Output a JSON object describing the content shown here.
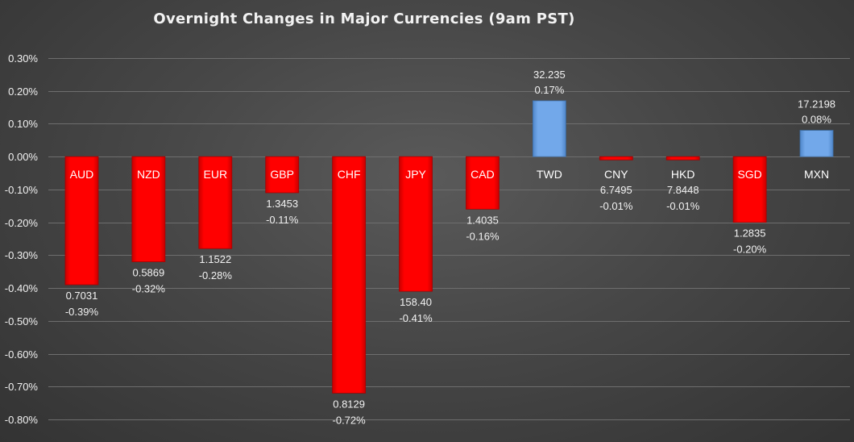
{
  "chart_data": {
    "type": "bar",
    "title": "Overnight Changes in Major Currencies (9am PST)",
    "categories": [
      "AUD",
      "NZD",
      "EUR",
      "GBP",
      "CHF",
      "JPY",
      "CAD",
      "TWD",
      "CNY",
      "HKD",
      "SGD",
      "MXN"
    ],
    "values": [
      -0.39,
      -0.32,
      -0.28,
      -0.11,
      -0.72,
      -0.41,
      -0.16,
      0.17,
      -0.01,
      -0.01,
      -0.2,
      0.08
    ],
    "value_labels": [
      "-0.39%",
      "-0.32%",
      "-0.28%",
      "-0.11%",
      "-0.72%",
      "-0.41%",
      "-0.16%",
      "0.17%",
      "-0.01%",
      "-0.01%",
      "-0.20%",
      "0.08%"
    ],
    "rates": [
      "0.7031",
      "0.5869",
      "1.1522",
      "1.3453",
      "0.8129",
      "158.40",
      "1.4035",
      "32.235",
      "6.7495",
      "7.8448",
      "1.2835",
      "17.2198"
    ],
    "yticks": [
      "0.30%",
      "0.20%",
      "0.10%",
      "0.00%",
      "-0.10%",
      "-0.20%",
      "-0.30%",
      "-0.40%",
      "-0.50%",
      "-0.60%",
      "-0.70%",
      "-0.80%"
    ],
    "ylim": [
      -0.8,
      0.3
    ],
    "xlabel": "",
    "ylabel": "",
    "grid": true,
    "legend": "none",
    "colors": {
      "negative": "#ff0000",
      "positive": "#6fa5e6",
      "grid": "#6e6e6e",
      "background": "#474747"
    }
  }
}
